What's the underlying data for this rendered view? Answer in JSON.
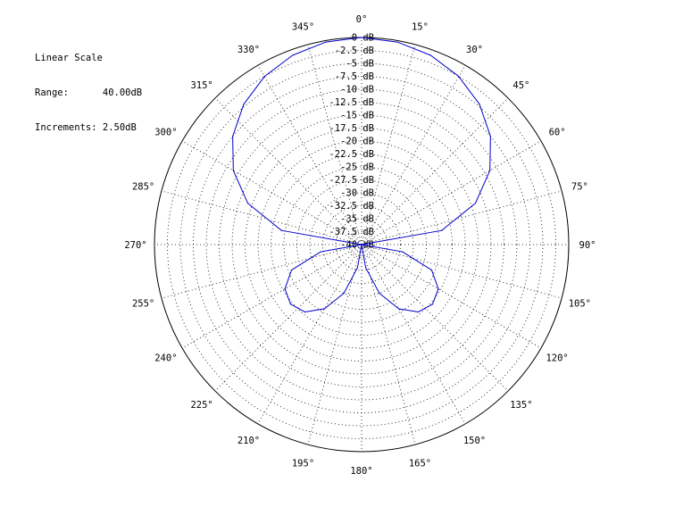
{
  "info": {
    "scale_label": "Linear Scale",
    "range_label": "Range:",
    "range_value": "40.00dB",
    "increments_label": "Increments:",
    "increments_value": "2.50dB"
  },
  "chart_data": {
    "type": "polar",
    "title": "",
    "radial_scale": "linear",
    "r_range_db": [
      -40,
      0
    ],
    "r_increment_db": 2.5,
    "r_tick_labels": [
      "0 dB",
      "-2.5 dB",
      "-5 dB",
      "-7.5 dB",
      "-10 dB",
      "-12.5 dB",
      "-15 dB",
      "-17.5 dB",
      "-20 dB",
      "-22.5 dB",
      "-25 dB",
      "-27.5 dB",
      "-30 dB",
      "-32.5 dB",
      "-35 dB",
      "-37.5 dB",
      "-40 dB"
    ],
    "angle_tick_labels": [
      "0°",
      "15°",
      "30°",
      "45°",
      "60°",
      "75°",
      "90°",
      "105°",
      "120°",
      "135°",
      "150°",
      "165°",
      "180°",
      "195°",
      "210°",
      "225°",
      "240°",
      "255°",
      "270°",
      "285°",
      "300°",
      "315°",
      "330°",
      "345°"
    ],
    "grid": true,
    "series": [
      {
        "color": "#0000cc",
        "angle_deg": [
          0,
          10,
          20,
          30,
          40,
          50,
          60,
          70,
          80,
          90,
          100,
          110,
          120,
          130,
          140,
          150,
          160,
          170,
          180,
          190,
          200,
          210,
          220,
          230,
          240,
          250,
          260,
          270,
          280,
          290,
          300,
          310,
          320,
          330,
          340,
          350,
          360
        ],
        "level_db": [
          0.0,
          -0.27,
          -1.08,
          -2.5,
          -4.6,
          -7.5,
          -11.4,
          -16.6,
          -24.3,
          -40.0,
          -32.0,
          -25.6,
          -22.9,
          -22.1,
          -23.0,
          -25.7,
          -30.0,
          -35.5,
          -40.0,
          -35.5,
          -30.0,
          -25.7,
          -23.0,
          -22.1,
          -22.9,
          -25.6,
          -32.0,
          -40.0,
          -24.3,
          -16.6,
          -11.4,
          -7.5,
          -4.6,
          -2.5,
          -1.08,
          -0.27,
          0.0
        ]
      }
    ]
  }
}
